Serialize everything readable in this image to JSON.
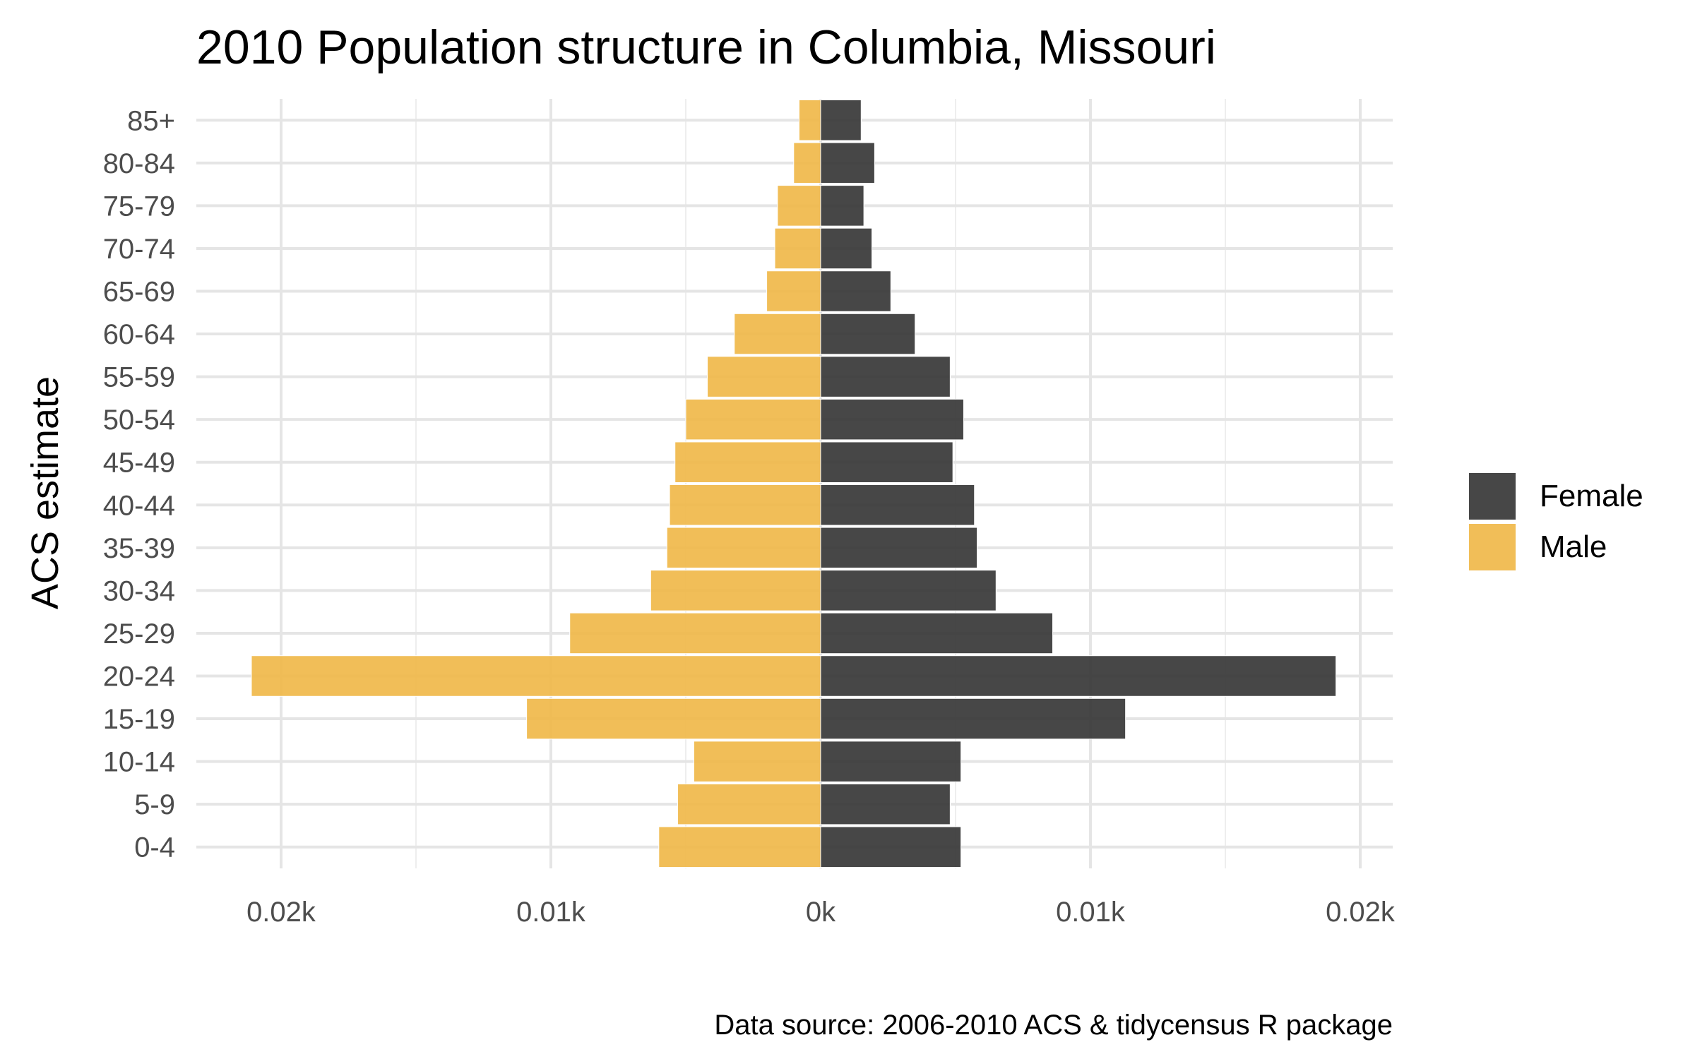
{
  "chart_data": {
    "type": "bar",
    "orientation": "horizontal",
    "title": "2010 Population structure in Columbia, Missouri",
    "ylabel": "ACS estimate",
    "xlabel": "",
    "caption": "Data source: 2006-2010 ACS & tidycensus R package",
    "categories": [
      "0-4",
      "5-9",
      "10-14",
      "15-19",
      "20-24",
      "25-29",
      "30-34",
      "35-39",
      "40-44",
      "45-49",
      "50-54",
      "55-59",
      "60-64",
      "65-69",
      "70-74",
      "75-79",
      "80-84",
      "85+"
    ],
    "series": [
      {
        "name": "Female",
        "color": "#333333",
        "values": [
          5.2,
          4.8,
          5.2,
          11.3,
          19.1,
          8.6,
          6.5,
          5.8,
          5.7,
          4.9,
          5.3,
          4.8,
          3.5,
          2.6,
          1.9,
          1.6,
          2.0,
          1.5
        ]
      },
      {
        "name": "Male",
        "color": "#F0B746",
        "values": [
          -6.0,
          -5.3,
          -4.7,
          -10.9,
          -21.1,
          -9.3,
          -6.3,
          -5.7,
          -5.6,
          -5.4,
          -5.0,
          -4.2,
          -3.2,
          -2.0,
          -1.7,
          -1.6,
          -1.0,
          -0.8
        ]
      }
    ],
    "xlim": [
      -21.1,
      19.1
    ],
    "x_ticks": [
      {
        "value": -20,
        "label": "0.02k"
      },
      {
        "value": -10,
        "label": "0.01k"
      },
      {
        "value": 0,
        "label": "0k"
      },
      {
        "value": 10,
        "label": "0.01k"
      },
      {
        "value": 20,
        "label": "0.02k"
      }
    ],
    "x_minor_ticks": [
      -15,
      -5,
      5,
      15
    ],
    "grid": true,
    "legend_position": "right",
    "bar_opacity": 0.9
  }
}
